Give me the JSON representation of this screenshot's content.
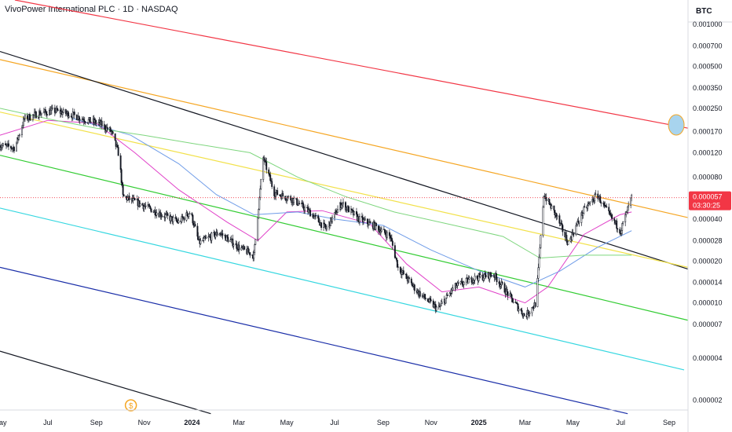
{
  "header": {
    "title": "VivoPower International PLC · 1D · NASDAQ"
  },
  "colors": {
    "candle": "#131722",
    "wick": "#131722",
    "ma_fast": "#e040c8",
    "ma_mid": "#6f9ce8",
    "ma_slow": "#7ed67e",
    "price_line": "#f23645",
    "price_label_bg": "#f23645"
  },
  "chart_data": {
    "type": "candlestick",
    "instrument": "VivoPower International PLC",
    "interval": "1D",
    "exchange": "NASDAQ",
    "currency": "BTC",
    "y_scale": "log",
    "ylim": [
      1.7e-06,
      0.0015
    ],
    "y_ticks": [
      "0.001000",
      "0.000700",
      "0.000500",
      "0.000350",
      "0.000250",
      "0.000170",
      "0.000120",
      "0.000080",
      "0.000040",
      "0.000028",
      "0.000020",
      "0.000014",
      "0.000010",
      "0.000007",
      "0.000004",
      "0.000002"
    ],
    "x_ticks": [
      "May",
      "Jul",
      "Sep",
      "Nov",
      "2024",
      "Mar",
      "May",
      "Jul",
      "Sep",
      "Nov",
      "2025",
      "Mar",
      "May",
      "Jul",
      "Sep"
    ],
    "x_ticks_bold": [
      "2024",
      "2025"
    ],
    "x_start": "2023-05-01",
    "x_end": "2025-09-25",
    "last_price": "0.000057",
    "countdown": "03:30:25",
    "price_path": [
      [
        "2023-05-01",
        0.000135
      ],
      [
        "2023-05-20",
        0.00013
      ],
      [
        "2023-06-01",
        0.00021
      ],
      [
        "2023-06-20",
        0.00023
      ],
      [
        "2023-07-10",
        0.00024
      ],
      [
        "2023-08-01",
        0.000225
      ],
      [
        "2023-08-20",
        0.000205
      ],
      [
        "2023-09-05",
        0.000195
      ],
      [
        "2023-09-20",
        0.00017
      ],
      [
        "2023-09-30",
        0.000115
      ],
      [
        "2023-10-05",
        5.8e-05
      ],
      [
        "2023-10-25",
        5.2e-05
      ],
      [
        "2023-11-20",
        4.4e-05
      ],
      [
        "2023-12-15",
        3.8e-05
      ],
      [
        "2023-12-30",
        4.5e-05
      ],
      [
        "2024-01-10",
        2.7e-05
      ],
      [
        "2024-02-05",
        3.2e-05
      ],
      [
        "2024-03-01",
        2.5e-05
      ],
      [
        "2024-03-20",
        2.2e-05
      ],
      [
        "2024-04-01",
        0.00011
      ],
      [
        "2024-04-15",
        6.2e-05
      ],
      [
        "2024-05-10",
        5.5e-05
      ],
      [
        "2024-06-01",
        4.4e-05
      ],
      [
        "2024-06-20",
        3.4e-05
      ],
      [
        "2024-07-10",
        5.2e-05
      ],
      [
        "2024-08-01",
        4e-05
      ],
      [
        "2024-08-20",
        3.6e-05
      ],
      [
        "2024-09-10",
        3e-05
      ],
      [
        "2024-09-20",
        1.8e-05
      ],
      [
        "2024-10-15",
        1.2e-05
      ],
      [
        "2024-11-10",
        9e-06
      ],
      [
        "2024-12-01",
        1.3e-05
      ],
      [
        "2024-12-25",
        1.5e-05
      ],
      [
        "2025-01-20",
        1.6e-05
      ],
      [
        "2025-02-10",
        1.1e-05
      ],
      [
        "2025-03-01",
        8e-06
      ],
      [
        "2025-03-15",
        1e-05
      ],
      [
        "2025-03-25",
        6e-05
      ],
      [
        "2025-04-10",
        4.2e-05
      ],
      [
        "2025-04-25",
        2.7e-05
      ],
      [
        "2025-05-15",
        4.6e-05
      ],
      [
        "2025-06-01",
        6e-05
      ],
      [
        "2025-06-15",
        4.4e-05
      ],
      [
        "2025-07-01",
        3.3e-05
      ],
      [
        "2025-07-15",
        5.7e-05
      ]
    ],
    "moving_averages": [
      {
        "color": "#e040c8",
        "path": [
          [
            "2023-05-01",
            0.00016
          ],
          [
            "2023-07-01",
            0.000205
          ],
          [
            "2023-09-01",
            0.000195
          ],
          [
            "2023-10-20",
            0.00012
          ],
          [
            "2023-12-15",
            6.5e-05
          ],
          [
            "2024-02-15",
            3.8e-05
          ],
          [
            "2024-03-25",
            2.8e-05
          ],
          [
            "2024-05-01",
            4.5e-05
          ],
          [
            "2024-06-15",
            4.6e-05
          ],
          [
            "2024-08-15",
            3.7e-05
          ],
          [
            "2024-10-01",
            1.9e-05
          ],
          [
            "2024-11-15",
            1.2e-05
          ],
          [
            "2025-01-01",
            1.3e-05
          ],
          [
            "2025-03-01",
            1e-05
          ],
          [
            "2025-03-30",
            1.3e-05
          ],
          [
            "2025-05-15",
            3.1e-05
          ],
          [
            "2025-06-30",
            4.3e-05
          ],
          [
            "2025-07-15",
            4.5e-05
          ]
        ]
      },
      {
        "color": "#6f9ce8",
        "path": [
          [
            "2023-08-01",
            0.000212
          ],
          [
            "2023-10-15",
            0.00016
          ],
          [
            "2023-12-15",
            0.0001
          ],
          [
            "2024-02-01",
            6e-05
          ],
          [
            "2024-03-20",
            4.3e-05
          ],
          [
            "2024-05-15",
            4.5e-05
          ],
          [
            "2024-07-01",
            4e-05
          ],
          [
            "2024-09-01",
            3.6e-05
          ],
          [
            "2024-11-01",
            2.4e-05
          ],
          [
            "2025-01-01",
            1.7e-05
          ],
          [
            "2025-03-01",
            1.3e-05
          ],
          [
            "2025-04-15",
            1.7e-05
          ],
          [
            "2025-06-01",
            2.5e-05
          ],
          [
            "2025-07-15",
            3.3e-05
          ]
        ]
      },
      {
        "color": "#7ed67e",
        "path": [
          [
            "2023-05-01",
            0.00025
          ],
          [
            "2023-07-01",
            0.00021
          ],
          [
            "2023-09-01",
            0.00018
          ],
          [
            "2023-11-01",
            0.00016
          ],
          [
            "2024-01-01",
            0.00014
          ],
          [
            "2024-03-15",
            0.00012
          ],
          [
            "2024-05-15",
            8e-05
          ],
          [
            "2024-07-15",
            5.8e-05
          ],
          [
            "2024-09-15",
            4.5e-05
          ],
          [
            "2024-12-01",
            3.6e-05
          ],
          [
            "2025-02-01",
            3e-05
          ],
          [
            "2025-03-20",
            2.1e-05
          ],
          [
            "2025-05-15",
            2.2e-05
          ],
          [
            "2025-07-15",
            2.2e-05
          ]
        ]
      }
    ],
    "trend_lines": [
      {
        "color": "#f23645",
        "from": [
          "2023-05-20",
          0.0015
        ],
        "to": [
          "2025-09-25",
          0.00018
        ]
      },
      {
        "color": "#f5a623",
        "from": [
          "2023-05-01",
          0.00056
        ],
        "to": [
          "2025-09-25",
          4.1e-05
        ]
      },
      {
        "color": "#131722",
        "from": [
          "2023-05-01",
          0.00064
        ],
        "to": [
          "2025-09-25",
          1.75e-05
        ]
      },
      {
        "color": "#f2e14a",
        "from": [
          "2023-05-01",
          0.000235
        ],
        "to": [
          "2025-09-25",
          1.8e-05
        ]
      },
      {
        "color": "#33cc33",
        "from": [
          "2023-05-01",
          0.000115
        ],
        "to": [
          "2025-09-25",
          7.5e-06
        ]
      },
      {
        "color": "#36d7e0",
        "from": [
          "2023-05-01",
          4.8e-05
        ],
        "to": [
          "2025-09-20",
          3.3e-06
        ]
      },
      {
        "color": "#1a2ea8",
        "from": [
          "2023-05-01",
          1.8e-05
        ],
        "to": [
          "2025-07-10",
          1.6e-06
        ]
      },
      {
        "color": "#131722",
        "from": [
          "2023-05-01",
          4.5e-06
        ],
        "to": [
          "2024-01-25",
          1.6e-06
        ]
      }
    ],
    "highlight_marker": {
      "date": "2025-09-10",
      "value": 0.00019,
      "fill": "#a8d4ee",
      "stroke": "#f5a623"
    },
    "event_marker": {
      "date": "2023-10-15",
      "symbol": "$",
      "color": "#f5a623"
    }
  }
}
